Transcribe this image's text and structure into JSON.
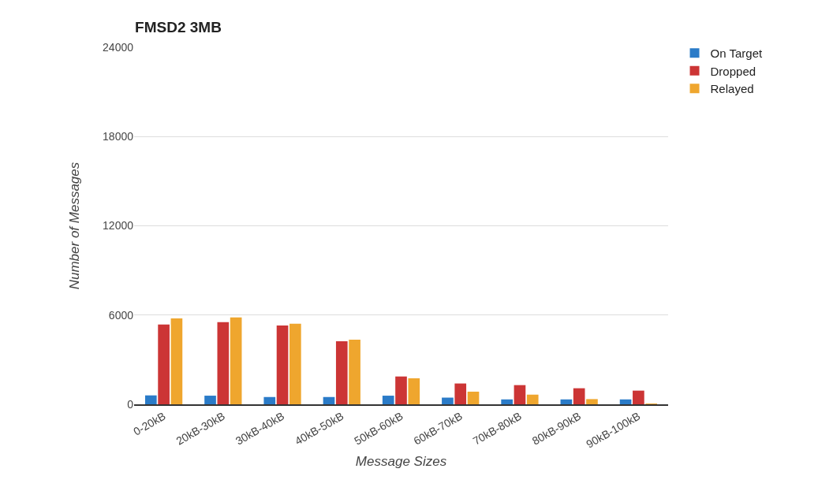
{
  "chart_data": {
    "type": "bar",
    "title": "FMSD2 3MB",
    "xlabel": "Message Sizes",
    "ylabel": "Number of Messages",
    "categories": [
      "0-20kB",
      "20kB-30kB",
      "30kB-40kB",
      "40kB-50kB",
      "50kB-60kB",
      "60kB-70kB",
      "70kB-80kB",
      "80kB-90kB",
      "90kB-100kB"
    ],
    "series": [
      {
        "name": "On Target",
        "color": "#2a7bc8",
        "values": [
          600,
          580,
          490,
          490,
          580,
          450,
          330,
          330,
          330
        ]
      },
      {
        "name": "Dropped",
        "color": "#cc3535",
        "values": [
          5360,
          5520,
          5300,
          4240,
          1870,
          1400,
          1290,
          1080,
          920
        ]
      },
      {
        "name": "Relayed",
        "color": "#efa62e",
        "values": [
          5770,
          5840,
          5420,
          4340,
          1750,
          850,
          650,
          350,
          50
        ]
      }
    ],
    "ylim": [
      0,
      24000
    ],
    "yticks": [
      0,
      6000,
      12000,
      18000,
      24000
    ],
    "grid": "y",
    "legend": "top right"
  }
}
